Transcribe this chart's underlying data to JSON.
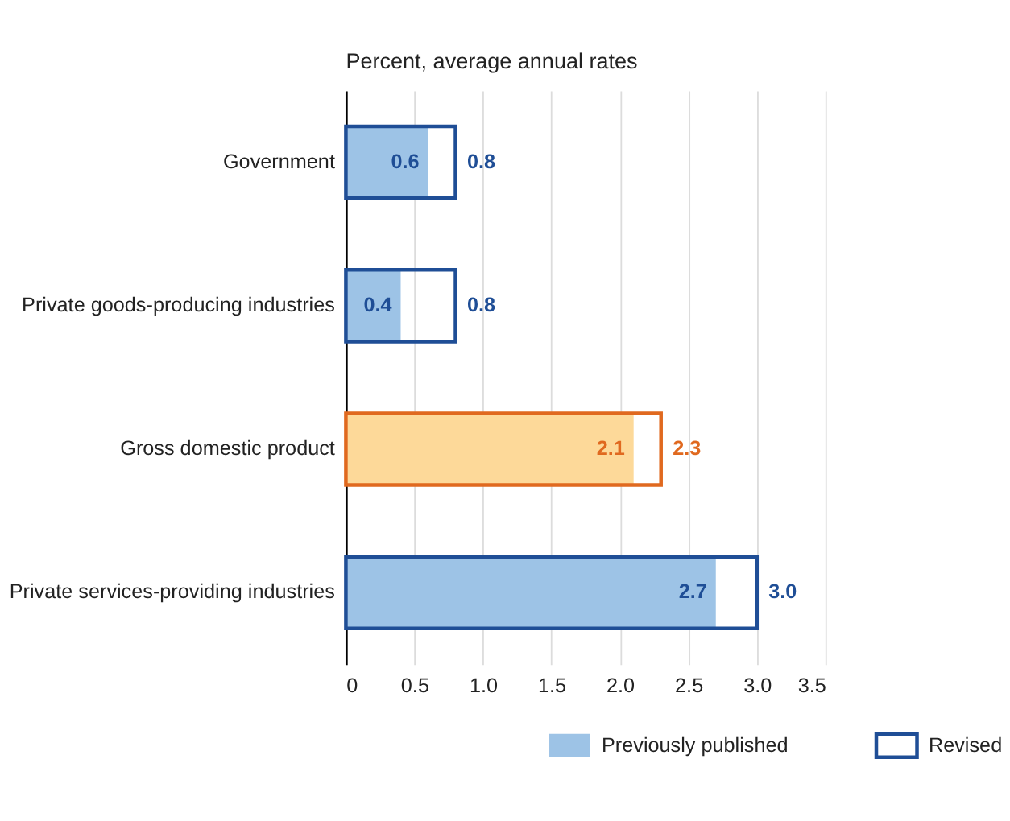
{
  "chart_data": {
    "type": "bar",
    "orientation": "horizontal",
    "title": "Percent, average annual rates",
    "categories": [
      "Government",
      "Private goods-producing industries",
      "Gross domestic product",
      "Private services-providing industries"
    ],
    "series": [
      {
        "name": "Previously published",
        "color": "#9dc3e6",
        "colors": [
          "#9dc3e6",
          "#9dc3e6",
          "#fdd999",
          "#9dc3e6"
        ],
        "values": [
          0.6,
          0.4,
          2.1,
          2.7
        ],
        "value_labels": [
          "0.6",
          "0.4",
          "2.1",
          "2.7"
        ]
      },
      {
        "name": "Revised",
        "color": "#1f4e96",
        "colors": [
          "#1f4e96",
          "#1f4e96",
          "#e0691f",
          "#1f4e96"
        ],
        "values": [
          0.8,
          0.8,
          2.3,
          3.0
        ],
        "value_labels": [
          "0.8",
          "0.8",
          "2.3",
          "3.0"
        ]
      }
    ],
    "xlim": [
      0,
      3.5
    ],
    "xticks": [
      0,
      0.5,
      {
        "value": 1,
        "label": "1.0"
      },
      1.5,
      {
        "value": 2,
        "label": "2.0"
      },
      2.5,
      {
        "value": 3,
        "label": "3.0"
      },
      3.5
    ],
    "grid": "x",
    "legend": "bottom"
  }
}
